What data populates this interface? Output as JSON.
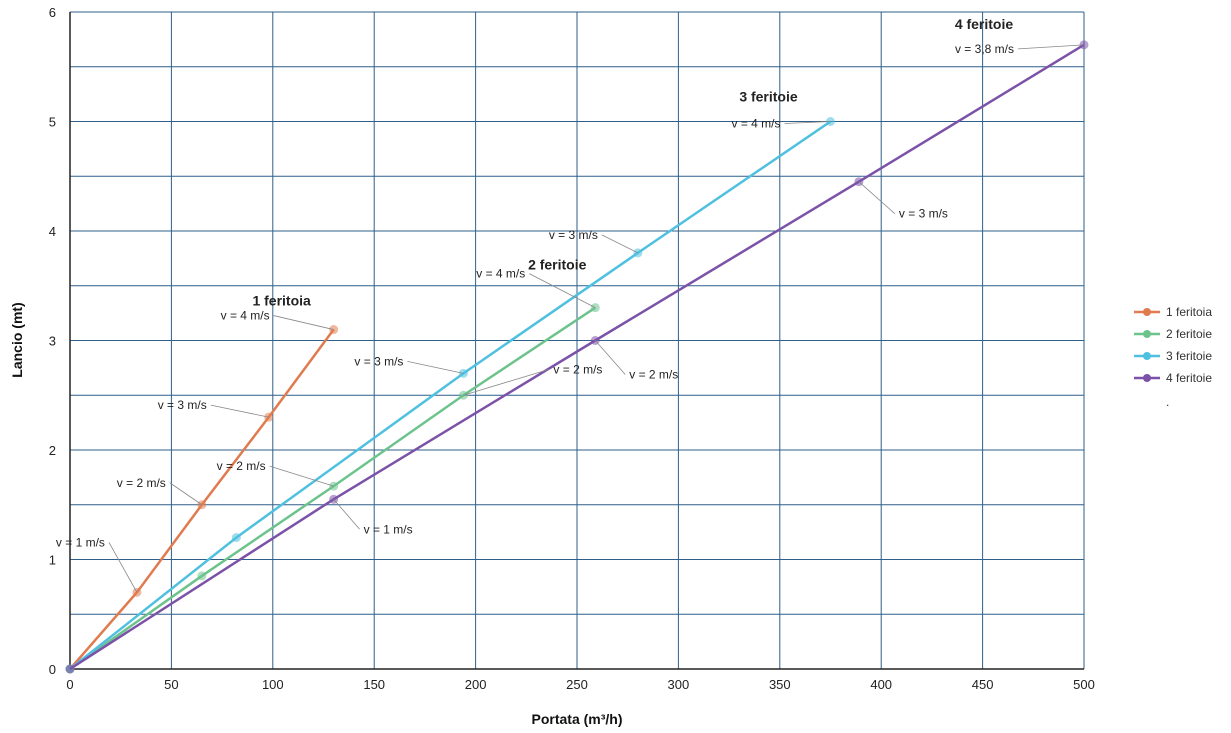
{
  "chart_data": {
    "type": "line",
    "title": "",
    "xlabel": "Portata (m³/h)",
    "ylabel": "Lancio (mt)",
    "xlim": [
      0,
      500
    ],
    "ylim": [
      0,
      6
    ],
    "x_ticks": [
      "0",
      "50",
      "100",
      "150",
      "200",
      "250",
      "300",
      "350",
      "400",
      "450",
      "500"
    ],
    "y_ticks": [
      "0",
      "1",
      "2",
      "3",
      "4",
      "5",
      "6"
    ],
    "grid": true,
    "legend_position": "right",
    "legend_dot": ".",
    "series": [
      {
        "name": "1 feritoia",
        "color": "#e07b4f",
        "points": [
          {
            "x": 0,
            "y": 0
          },
          {
            "x": 33,
            "y": 0.7,
            "label": "v = 1 m/s"
          },
          {
            "x": 65,
            "y": 1.5,
            "label": "v = 2 m/s"
          },
          {
            "x": 98,
            "y": 2.3,
            "label": "v = 3 m/s"
          },
          {
            "x": 130,
            "y": 3.1,
            "label": "v = 4 m/s"
          }
        ],
        "end_label": "1 feritoia"
      },
      {
        "name": "2 feritoie",
        "color": "#6cc38c",
        "points": [
          {
            "x": 0,
            "y": 0
          },
          {
            "x": 65,
            "y": 0.85
          },
          {
            "x": 130,
            "y": 1.67,
            "label": "v = 2 m/s"
          },
          {
            "x": 194,
            "y": 2.5,
            "label": "v = 2 m/s"
          },
          {
            "x": 259,
            "y": 3.3,
            "label": "v = 4 m/s"
          }
        ],
        "end_label": "2 feritoie"
      },
      {
        "name": "3 feritoie",
        "color": "#4fc0e0",
        "points": [
          {
            "x": 0,
            "y": 0
          },
          {
            "x": 82,
            "y": 1.2
          },
          {
            "x": 194,
            "y": 2.7,
            "label": "v = 3 m/s"
          },
          {
            "x": 280,
            "y": 3.8,
            "label": "v = 3 m/s"
          },
          {
            "x": 375,
            "y": 5.0,
            "label": "v = 4 m/s"
          }
        ],
        "end_label": "3 feritoie"
      },
      {
        "name": "4 feritoie",
        "color": "#7b52a8",
        "points": [
          {
            "x": 0,
            "y": 0
          },
          {
            "x": 130,
            "y": 1.55,
            "label": "v = 1 m/s"
          },
          {
            "x": 259,
            "y": 3.0,
            "label": "v = 2 m/s"
          },
          {
            "x": 389,
            "y": 4.45,
            "label": "v = 3 m/s"
          },
          {
            "x": 500,
            "y": 5.7,
            "label": "v = 3,8 m/s"
          }
        ],
        "end_label": "4 feritoie"
      }
    ]
  }
}
